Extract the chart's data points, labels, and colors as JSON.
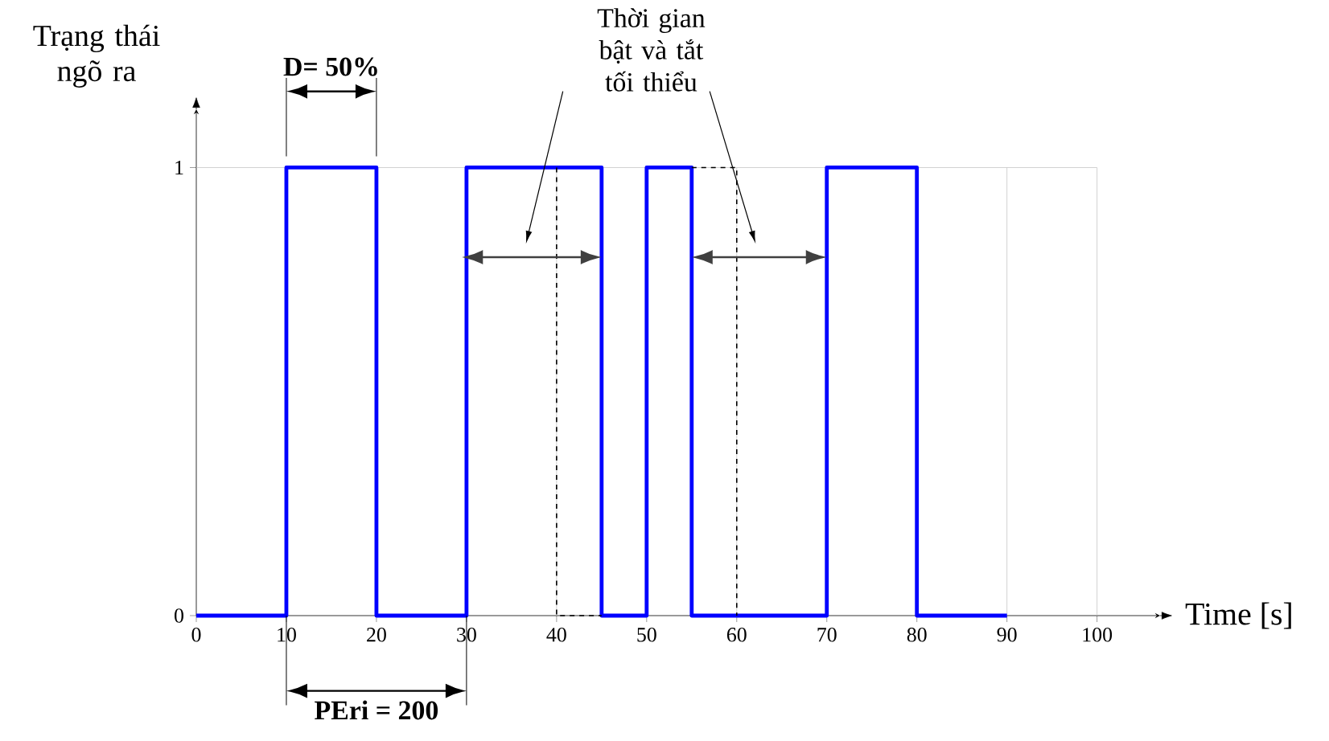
{
  "chart_data": {
    "type": "step",
    "xlabel": "Time [s]",
    "ylabel": "Trạng thái ngõ ra",
    "annotations": [
      "D= 50%",
      "PEri = 200",
      "Thời gian bật và tắt tối thiểu"
    ],
    "xlim": [
      0,
      107
    ],
    "ylim": [
      0,
      1.13
    ],
    "xticks": [
      0,
      10,
      20,
      30,
      40,
      50,
      60,
      70,
      80,
      90,
      100
    ],
    "yticks": [
      0,
      1
    ],
    "grid": true,
    "series": [
      {
        "color": "#0000ff",
        "x": [
          0,
          10,
          20,
          30,
          45,
          50,
          55,
          70,
          80,
          90
        ],
        "values": [
          0,
          1,
          0,
          1,
          0,
          1,
          0,
          1,
          0,
          0
        ]
      },
      {
        "type": "line",
        "line_style": "dashed",
        "color": "#000000",
        "x": [
          40,
          40,
          45,
          50,
          55,
          60,
          60
        ],
        "values": [
          1,
          0,
          0,
          null,
          1,
          1,
          0
        ]
      }
    ]
  }
}
